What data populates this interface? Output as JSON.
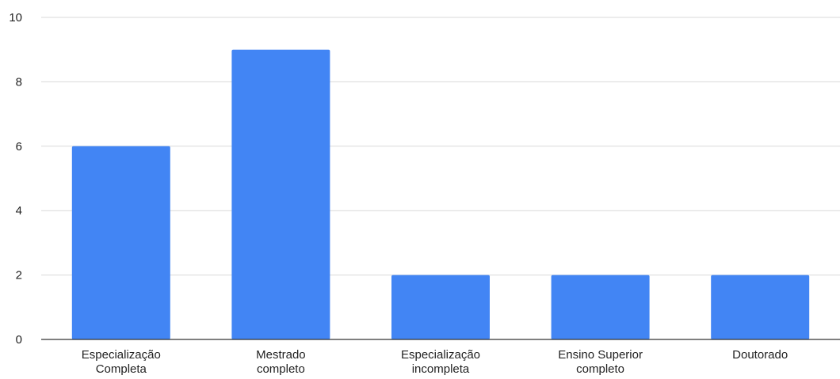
{
  "chart_data": {
    "type": "bar",
    "title": "",
    "xlabel": "",
    "ylabel": "",
    "categories": [
      [
        "Especialização",
        "Completa"
      ],
      [
        "Mestrado",
        "completo"
      ],
      [
        "Especialização",
        "incompleta"
      ],
      [
        "Ensino Superior",
        "completo"
      ],
      [
        "Doutorado"
      ]
    ],
    "values": [
      6,
      9,
      2,
      2,
      2
    ],
    "ylim": [
      0,
      10
    ],
    "yticks": [
      0,
      2,
      4,
      6,
      8,
      10
    ],
    "grid": true,
    "legend": "none",
    "colors": {
      "bar": "#4285F4"
    }
  }
}
